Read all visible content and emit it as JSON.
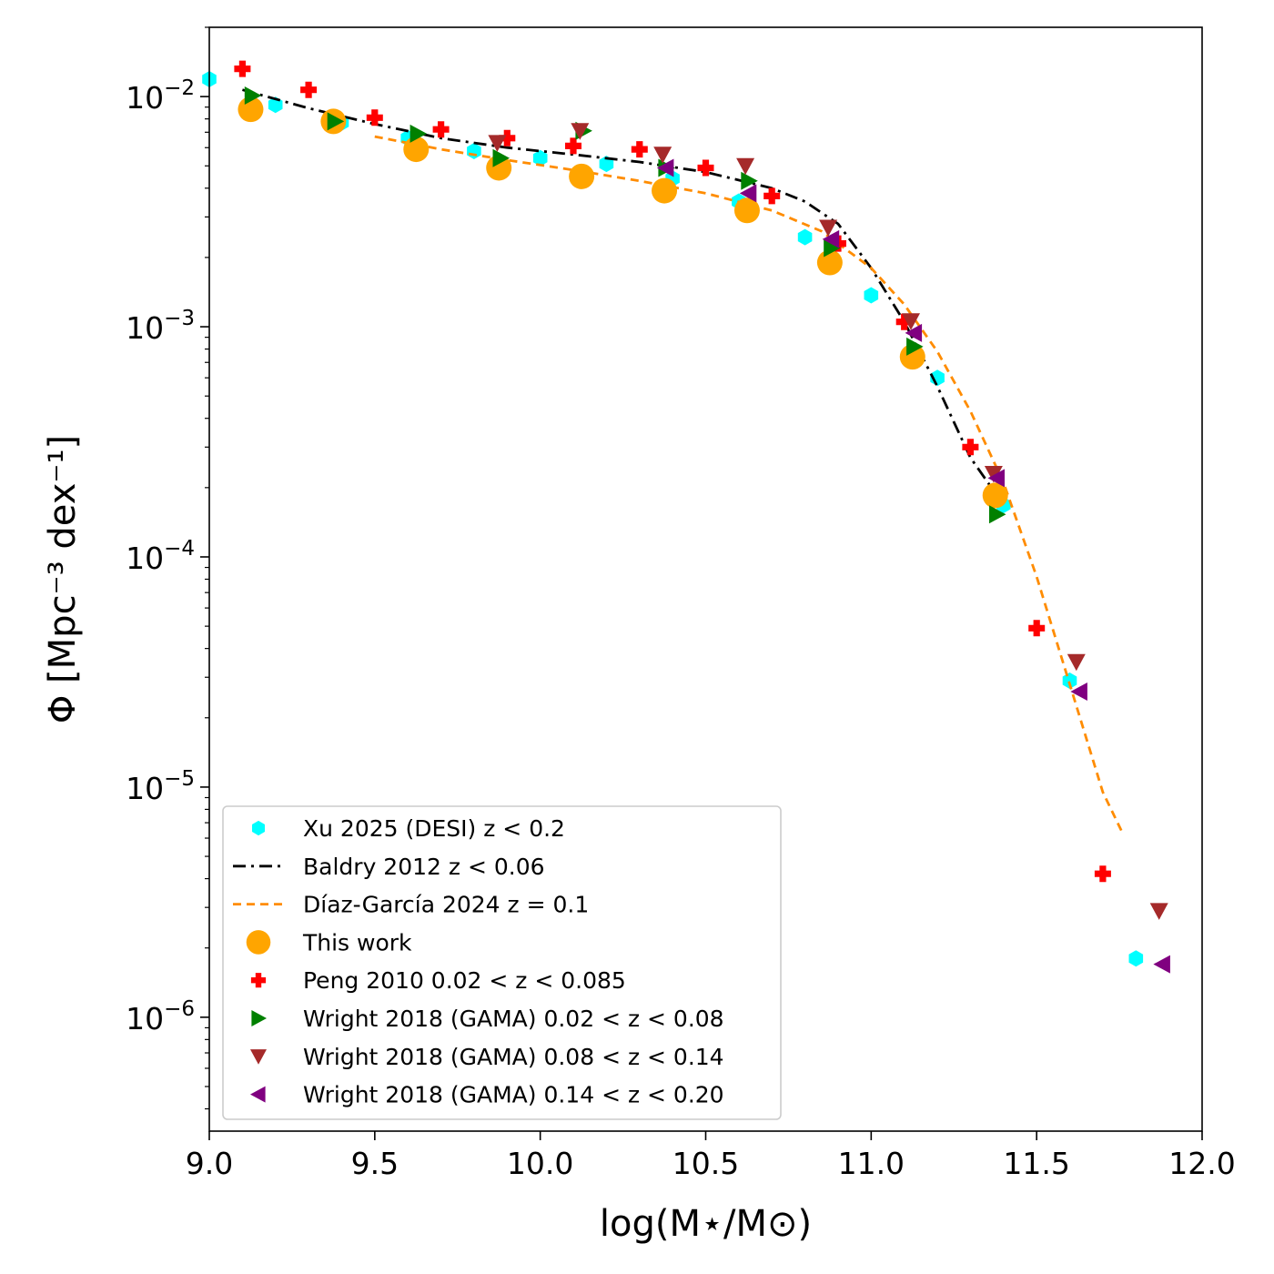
{
  "chart_data": {
    "type": "scatter",
    "xlabel": "log(M⋆/M⊙)",
    "ylabel": "Φ [Mpc⁻³ dex⁻¹]",
    "xlim": [
      9.0,
      12.0
    ],
    "ylim": [
      3.2e-07,
      0.02
    ],
    "yscale": "log",
    "grid": false,
    "legend_position": "lower-left",
    "x_ticks": [
      "9.0",
      "9.5",
      "10.0",
      "10.5",
      "11.0",
      "11.5",
      "12.0"
    ],
    "y_ticks": [
      {
        "base": "10",
        "exp": "−2",
        "value": 0.01
      },
      {
        "base": "10",
        "exp": "−3",
        "value": 0.001
      },
      {
        "base": "10",
        "exp": "−4",
        "value": 0.0001
      },
      {
        "base": "10",
        "exp": "−5",
        "value": 1e-05
      },
      {
        "base": "10",
        "exp": "−6",
        "value": 1e-06
      }
    ],
    "series": [
      {
        "name": "Xu 2025 (DESI) z < 0.2",
        "kind": "marker",
        "marker": "hexagon",
        "color": "#00ffff",
        "x": [
          9.0,
          9.2,
          9.4,
          9.6,
          9.8,
          10.0,
          10.2,
          10.4,
          10.6,
          10.8,
          11.0,
          11.2,
          11.4,
          11.6,
          11.8
        ],
        "y": [
          0.0119,
          0.0092,
          0.0077,
          0.0066,
          0.0058,
          0.0054,
          0.0051,
          0.0044,
          0.0035,
          0.00245,
          0.00137,
          0.0006,
          0.000168,
          2.9e-05,
          1.8e-06
        ]
      },
      {
        "name": "Baldry 2012 z < 0.06",
        "kind": "line",
        "dash": "dashdot",
        "color": "#000000",
        "x": [
          9.1,
          9.3,
          9.5,
          9.7,
          9.9,
          10.1,
          10.3,
          10.5,
          10.7,
          10.8,
          10.9,
          11.0,
          11.1,
          11.2,
          11.3,
          11.38
        ],
        "y": [
          0.0107,
          0.0089,
          0.0076,
          0.0066,
          0.006,
          0.0056,
          0.0052,
          0.0047,
          0.004,
          0.0035,
          0.0028,
          0.0018,
          0.00105,
          0.00055,
          0.00027,
          0.000185
        ]
      },
      {
        "name": "Díaz-García 2024 z = 0.1",
        "kind": "line",
        "dash": "dashed",
        "color": "#ff8c00",
        "x": [
          9.5,
          9.7,
          9.9,
          10.1,
          10.3,
          10.5,
          10.7,
          10.85,
          11.0,
          11.1,
          11.2,
          11.3,
          11.4,
          11.5,
          11.6,
          11.7,
          11.76
        ],
        "y": [
          0.0067,
          0.0059,
          0.0053,
          0.0048,
          0.0043,
          0.0038,
          0.0032,
          0.0026,
          0.0018,
          0.00125,
          0.00078,
          0.00043,
          0.00021,
          8.2e-05,
          2.8e-05,
          9.5e-06,
          6.3e-06
        ]
      },
      {
        "name": "This work",
        "kind": "marker",
        "marker": "circle",
        "color": "#ffa500",
        "x": [
          9.125,
          9.375,
          9.625,
          9.875,
          10.125,
          10.375,
          10.625,
          10.875,
          11.125,
          11.375
        ],
        "y": [
          0.0088,
          0.0078,
          0.0059,
          0.0049,
          0.0045,
          0.0039,
          0.0032,
          0.0019,
          0.00074,
          0.000185
        ]
      },
      {
        "name": "Peng 2010 0.02 < z < 0.085",
        "kind": "marker",
        "marker": "plus",
        "color": "#ff0000",
        "x": [
          9.1,
          9.3,
          9.5,
          9.7,
          9.9,
          10.1,
          10.3,
          10.5,
          10.7,
          10.9,
          11.1,
          11.3,
          11.5,
          11.7
        ],
        "y": [
          0.0132,
          0.0107,
          0.0081,
          0.0072,
          0.0066,
          0.0061,
          0.0059,
          0.0049,
          0.0037,
          0.0023,
          0.00105,
          0.0003,
          4.9e-05,
          4.2e-06
        ]
      },
      {
        "name": "Wright 2018 (GAMA) 0.02 < z < 0.08",
        "kind": "marker",
        "marker": "triangle-right",
        "color": "#008000",
        "x": [
          9.13,
          9.38,
          9.63,
          9.88,
          10.13,
          10.38,
          10.63,
          10.88,
          11.13,
          11.38
        ],
        "y": [
          0.0101,
          0.0078,
          0.0069,
          0.0054,
          0.0071,
          0.0049,
          0.0043,
          0.0022,
          0.00082,
          0.000153
        ]
      },
      {
        "name": "Wright 2018 (GAMA) 0.08 < z < 0.14",
        "kind": "marker",
        "marker": "triangle-down",
        "color": "#a52a2a",
        "x": [
          9.87,
          10.12,
          10.37,
          10.62,
          10.87,
          11.12,
          11.37,
          11.62,
          11.87
        ],
        "y": [
          0.0063,
          0.0071,
          0.0056,
          0.005,
          0.0027,
          0.00106,
          0.00023,
          3.5e-05,
          2.9e-06
        ]
      },
      {
        "name": "Wright 2018 (GAMA) 0.14 < z < 0.20",
        "kind": "marker",
        "marker": "triangle-left",
        "color": "#800080",
        "x": [
          10.38,
          10.63,
          10.88,
          11.13,
          11.38,
          11.63,
          11.88
        ],
        "y": [
          0.0049,
          0.0038,
          0.0024,
          0.00094,
          0.00022,
          2.6e-05,
          1.7e-06
        ]
      }
    ]
  }
}
